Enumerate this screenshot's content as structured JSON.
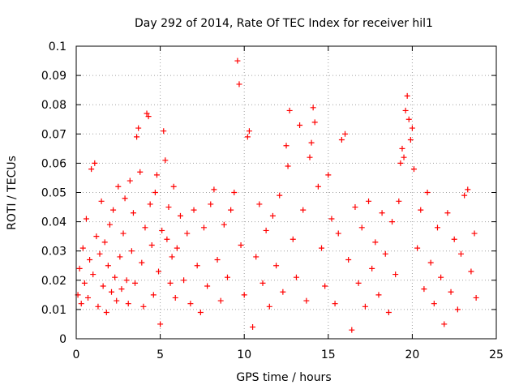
{
  "chart_data": {
    "type": "scatter",
    "title": "Day 292 of 2014, Rate Of TEC Index for receiver hil1",
    "xlabel": "GPS time / hours",
    "ylabel": "ROTI / TECUs",
    "xlim": [
      0,
      25
    ],
    "ylim": [
      0,
      0.1
    ],
    "grid": true,
    "x_ticks": [
      0,
      5,
      10,
      15,
      20,
      25
    ],
    "x_tick_labels": [
      "0",
      "5",
      "10",
      "15",
      "20",
      "25"
    ],
    "y_ticks": [
      0,
      0.01,
      0.02,
      0.03,
      0.04,
      0.05,
      0.06,
      0.07,
      0.08,
      0.09,
      0.1
    ],
    "y_tick_labels": [
      "0",
      "0.01",
      "0.02",
      "0.03",
      "0.04",
      "0.05",
      "0.06",
      "0.07",
      "0.08",
      "0.09",
      "0.1"
    ],
    "marker": "+",
    "color": "#ff0000",
    "series": [
      {
        "name": "hil1",
        "sampling_note": "representative sample of dense point cloud (GPS hours 0-23.8)",
        "points": [
          [
            0.1,
            0.015
          ],
          [
            0.2,
            0.024
          ],
          [
            0.3,
            0.012
          ],
          [
            0.4,
            0.031
          ],
          [
            0.5,
            0.019
          ],
          [
            0.6,
            0.041
          ],
          [
            0.7,
            0.014
          ],
          [
            0.8,
            0.027
          ],
          [
            0.9,
            0.058
          ],
          [
            1.0,
            0.022
          ],
          [
            1.1,
            0.06
          ],
          [
            1.2,
            0.035
          ],
          [
            1.3,
            0.011
          ],
          [
            1.4,
            0.029
          ],
          [
            1.5,
            0.047
          ],
          [
            1.6,
            0.018
          ],
          [
            1.7,
            0.033
          ],
          [
            1.8,
            0.009
          ],
          [
            1.9,
            0.025
          ],
          [
            2.0,
            0.039
          ],
          [
            2.1,
            0.016
          ],
          [
            2.2,
            0.044
          ],
          [
            2.3,
            0.021
          ],
          [
            2.4,
            0.013
          ],
          [
            2.5,
            0.052
          ],
          [
            2.6,
            0.028
          ],
          [
            2.7,
            0.017
          ],
          [
            2.8,
            0.036
          ],
          [
            2.9,
            0.048
          ],
          [
            3.0,
            0.02
          ],
          [
            3.1,
            0.012
          ],
          [
            3.2,
            0.054
          ],
          [
            3.3,
            0.03
          ],
          [
            3.4,
            0.043
          ],
          [
            3.5,
            0.019
          ],
          [
            3.6,
            0.069
          ],
          [
            3.7,
            0.072
          ],
          [
            3.8,
            0.057
          ],
          [
            3.9,
            0.026
          ],
          [
            4.0,
            0.011
          ],
          [
            4.1,
            0.038
          ],
          [
            4.2,
            0.077
          ],
          [
            4.3,
            0.076
          ],
          [
            4.4,
            0.046
          ],
          [
            4.5,
            0.032
          ],
          [
            4.6,
            0.015
          ],
          [
            4.7,
            0.05
          ],
          [
            4.8,
            0.056
          ],
          [
            4.9,
            0.023
          ],
          [
            5.0,
            0.005
          ],
          [
            5.1,
            0.037
          ],
          [
            5.2,
            0.071
          ],
          [
            5.3,
            0.061
          ],
          [
            5.4,
            0.034
          ],
          [
            5.5,
            0.045
          ],
          [
            5.6,
            0.019
          ],
          [
            5.7,
            0.028
          ],
          [
            5.8,
            0.052
          ],
          [
            5.9,
            0.014
          ],
          [
            6.0,
            0.031
          ],
          [
            6.2,
            0.042
          ],
          [
            6.4,
            0.02
          ],
          [
            6.6,
            0.036
          ],
          [
            6.8,
            0.012
          ],
          [
            7.0,
            0.044
          ],
          [
            7.2,
            0.025
          ],
          [
            7.4,
            0.009
          ],
          [
            7.6,
            0.038
          ],
          [
            7.8,
            0.018
          ],
          [
            8.0,
            0.046
          ],
          [
            8.2,
            0.051
          ],
          [
            8.4,
            0.027
          ],
          [
            8.6,
            0.013
          ],
          [
            8.8,
            0.039
          ],
          [
            9.0,
            0.021
          ],
          [
            9.2,
            0.044
          ],
          [
            9.4,
            0.05
          ],
          [
            9.6,
            0.095
          ],
          [
            9.7,
            0.087
          ],
          [
            9.8,
            0.032
          ],
          [
            10.0,
            0.015
          ],
          [
            10.2,
            0.069
          ],
          [
            10.3,
            0.071
          ],
          [
            10.5,
            0.004
          ],
          [
            10.7,
            0.028
          ],
          [
            10.9,
            0.046
          ],
          [
            11.1,
            0.019
          ],
          [
            11.3,
            0.037
          ],
          [
            11.5,
            0.011
          ],
          [
            11.7,
            0.042
          ],
          [
            11.9,
            0.025
          ],
          [
            12.1,
            0.049
          ],
          [
            12.3,
            0.016
          ],
          [
            12.5,
            0.066
          ],
          [
            12.6,
            0.059
          ],
          [
            12.7,
            0.078
          ],
          [
            12.9,
            0.034
          ],
          [
            13.1,
            0.021
          ],
          [
            13.3,
            0.073
          ],
          [
            13.5,
            0.044
          ],
          [
            13.7,
            0.013
          ],
          [
            13.9,
            0.062
          ],
          [
            14.0,
            0.067
          ],
          [
            14.1,
            0.079
          ],
          [
            14.2,
            0.074
          ],
          [
            14.4,
            0.052
          ],
          [
            14.6,
            0.031
          ],
          [
            14.8,
            0.018
          ],
          [
            15.0,
            0.056
          ],
          [
            15.2,
            0.041
          ],
          [
            15.4,
            0.012
          ],
          [
            15.6,
            0.036
          ],
          [
            15.8,
            0.068
          ],
          [
            16.0,
            0.07
          ],
          [
            16.2,
            0.027
          ],
          [
            16.4,
            0.003
          ],
          [
            16.6,
            0.045
          ],
          [
            16.8,
            0.019
          ],
          [
            17.0,
            0.038
          ],
          [
            17.2,
            0.011
          ],
          [
            17.4,
            0.047
          ],
          [
            17.6,
            0.024
          ],
          [
            17.8,
            0.033
          ],
          [
            18.0,
            0.015
          ],
          [
            18.2,
            0.043
          ],
          [
            18.4,
            0.029
          ],
          [
            18.6,
            0.009
          ],
          [
            18.8,
            0.04
          ],
          [
            19.0,
            0.022
          ],
          [
            19.2,
            0.047
          ],
          [
            19.3,
            0.06
          ],
          [
            19.4,
            0.065
          ],
          [
            19.5,
            0.062
          ],
          [
            19.6,
            0.078
          ],
          [
            19.7,
            0.083
          ],
          [
            19.8,
            0.075
          ],
          [
            19.9,
            0.068
          ],
          [
            20.0,
            0.072
          ],
          [
            20.1,
            0.058
          ],
          [
            20.3,
            0.031
          ],
          [
            20.5,
            0.044
          ],
          [
            20.7,
            0.017
          ],
          [
            20.9,
            0.05
          ],
          [
            21.1,
            0.026
          ],
          [
            21.3,
            0.012
          ],
          [
            21.5,
            0.038
          ],
          [
            21.7,
            0.021
          ],
          [
            21.9,
            0.005
          ],
          [
            22.1,
            0.043
          ],
          [
            22.3,
            0.016
          ],
          [
            22.5,
            0.034
          ],
          [
            22.7,
            0.01
          ],
          [
            22.9,
            0.029
          ],
          [
            23.1,
            0.049
          ],
          [
            23.3,
            0.051
          ],
          [
            23.5,
            0.023
          ],
          [
            23.7,
            0.036
          ],
          [
            23.8,
            0.014
          ]
        ]
      }
    ]
  }
}
